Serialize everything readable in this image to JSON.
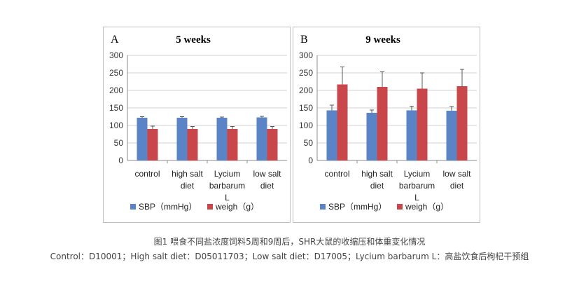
{
  "chart_data": [
    {
      "type": "bar",
      "panel_label": "A",
      "title": "5 weeks",
      "categories": [
        [
          "control"
        ],
        [
          "high salt",
          "diet"
        ],
        [
          "Lycium",
          "barbarum",
          "L"
        ],
        [
          "low salt",
          "diet"
        ]
      ],
      "series": [
        {
          "name": "SBP（mmHg）",
          "values": [
            122,
            122,
            122,
            123
          ],
          "errors": [
            3,
            3,
            2,
            3
          ]
        },
        {
          "name": "weigh（g）",
          "values": [
            90,
            90,
            90,
            90
          ],
          "errors": [
            8,
            7,
            7,
            7
          ]
        }
      ],
      "ylim": [
        0,
        300
      ],
      "yticks": [
        0,
        50,
        100,
        150,
        200,
        250,
        300
      ],
      "grid": true,
      "legend_position": "bottom"
    },
    {
      "type": "bar",
      "panel_label": "B",
      "title": "9 weeks",
      "categories": [
        [
          "control"
        ],
        [
          "high salt",
          "diet"
        ],
        [
          "Lycium",
          "barbarum",
          "L"
        ],
        [
          "low salt",
          "diet"
        ]
      ],
      "series": [
        {
          "name": "SBP（mmHg）",
          "values": [
            143,
            136,
            143,
            142
          ],
          "errors": [
            15,
            8,
            12,
            12
          ]
        },
        {
          "name": "weigh（g）",
          "values": [
            217,
            210,
            205,
            212
          ],
          "errors": [
            50,
            43,
            45,
            48
          ]
        }
      ],
      "ylim": [
        0,
        300
      ],
      "yticks": [
        0,
        50,
        100,
        150,
        200,
        250,
        300
      ],
      "grid": true,
      "legend_position": "bottom"
    }
  ],
  "colors": {
    "sbp": "#5b84c6",
    "weigh": "#c9474a",
    "grid": "#d0d0d0",
    "axis": "#8c8c8c",
    "error": "#333333"
  },
  "caption": {
    "line1": "图1 喂食不同盐浓度饲料5周和9周后，SHR大鼠的收缩压和体重变化情况",
    "line2": "Control：D10001；High salt diet：D05011703；Low salt diet：D17005；Lycium barbarum L：高盐饮食后枸杞干预组"
  }
}
